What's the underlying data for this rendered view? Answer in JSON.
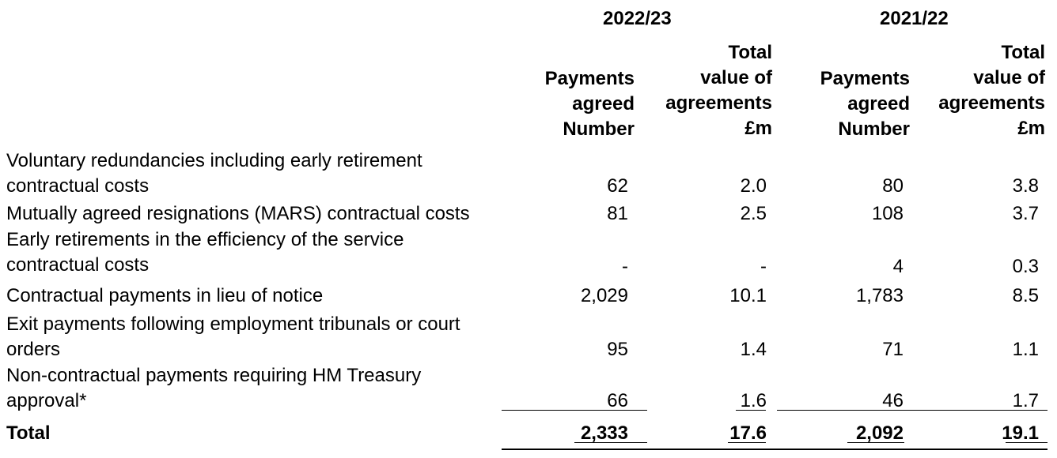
{
  "years": [
    "2022/23",
    "2021/22"
  ],
  "columns": [
    {
      "lines": [
        "Payments",
        "agreed",
        "Number"
      ]
    },
    {
      "lines": [
        "Total",
        "value of",
        "agreements",
        "£m"
      ]
    },
    {
      "lines": [
        "Payments",
        "agreed",
        "Number"
      ]
    },
    {
      "lines": [
        "Total",
        "value of",
        "agreements",
        "£m"
      ]
    }
  ],
  "rows": [
    {
      "label_lines": [
        "Voluntary redundancies including early retirement",
        "contractual costs"
      ],
      "values": [
        "62",
        "2.0",
        "80",
        "3.8"
      ]
    },
    {
      "label_lines": [
        "Mutually agreed resignations (MARS) contractual costs"
      ],
      "values": [
        "81",
        "2.5",
        "108",
        "3.7"
      ]
    },
    {
      "label_lines": [
        "Early retirements in the efficiency of the service",
        "contractual costs"
      ],
      "values": [
        "-",
        "-",
        "4",
        "0.3"
      ]
    },
    {
      "label_lines": [
        "Contractual payments in lieu of notice"
      ],
      "values": [
        "2,029",
        "10.1",
        "1,783",
        "8.5"
      ]
    },
    {
      "label_lines": [
        "Exit payments following employment tribunals or court",
        "orders"
      ],
      "values": [
        "95",
        "1.4",
        "71",
        "1.1"
      ]
    },
    {
      "label_lines": [
        "Non-contractual payments requiring HM Treasury",
        "approval*"
      ],
      "values": [
        "66",
        "1.6",
        "46",
        "1.7"
      ]
    }
  ],
  "total": {
    "label": "Total",
    "values": [
      "2,333",
      "17.6",
      "2,092",
      "19.1"
    ]
  }
}
